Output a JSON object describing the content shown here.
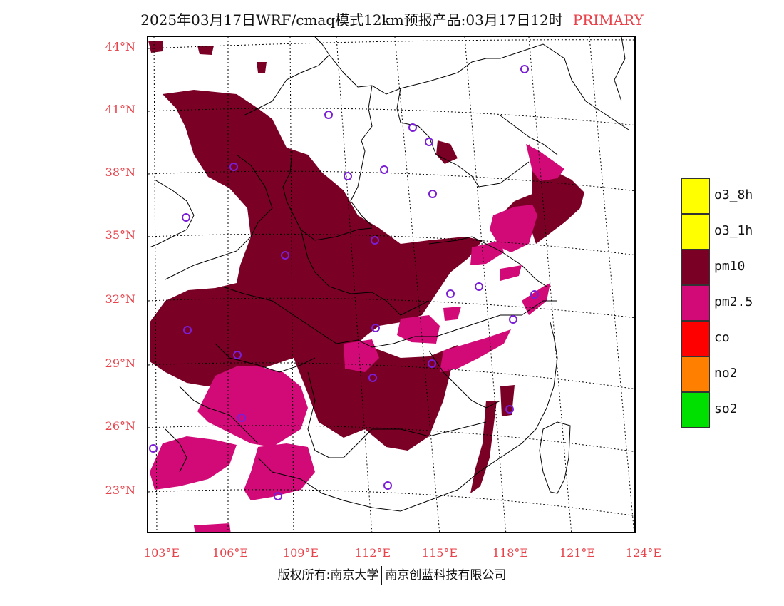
{
  "header": {
    "title": "2025年03月17日WRF/cmaq模式12km预报产品:03月17日12时",
    "tag": "PRIMARY"
  },
  "map": {
    "lat_labels": [
      "44°N",
      "41°N",
      "38°N",
      "35°N",
      "32°N",
      "29°N",
      "26°N",
      "23°N"
    ],
    "lon_labels": [
      "103°E",
      "106°E",
      "109°E",
      "112°E",
      "115°E",
      "118°E",
      "121°E",
      "124°E"
    ],
    "colors": {
      "pm10": "#7a0026",
      "pm25": "#d10a78",
      "station": "#7a1fd6",
      "boundary": "#000000"
    }
  },
  "legend": {
    "items": [
      {
        "label": "o3_8h",
        "color": "#ffff00"
      },
      {
        "label": "o3_1h",
        "color": "#ffff00"
      },
      {
        "label": "pm10",
        "color": "#7a0026"
      },
      {
        "label": "pm2.5",
        "color": "#d10a78"
      },
      {
        "label": "co",
        "color": "#ff0000"
      },
      {
        "label": "no2",
        "color": "#ff8000"
      },
      {
        "label": "so2",
        "color": "#00e000"
      }
    ]
  },
  "footer": {
    "left": "版权所有:南京大学",
    "right": "南京创蓝科技有限公司"
  }
}
